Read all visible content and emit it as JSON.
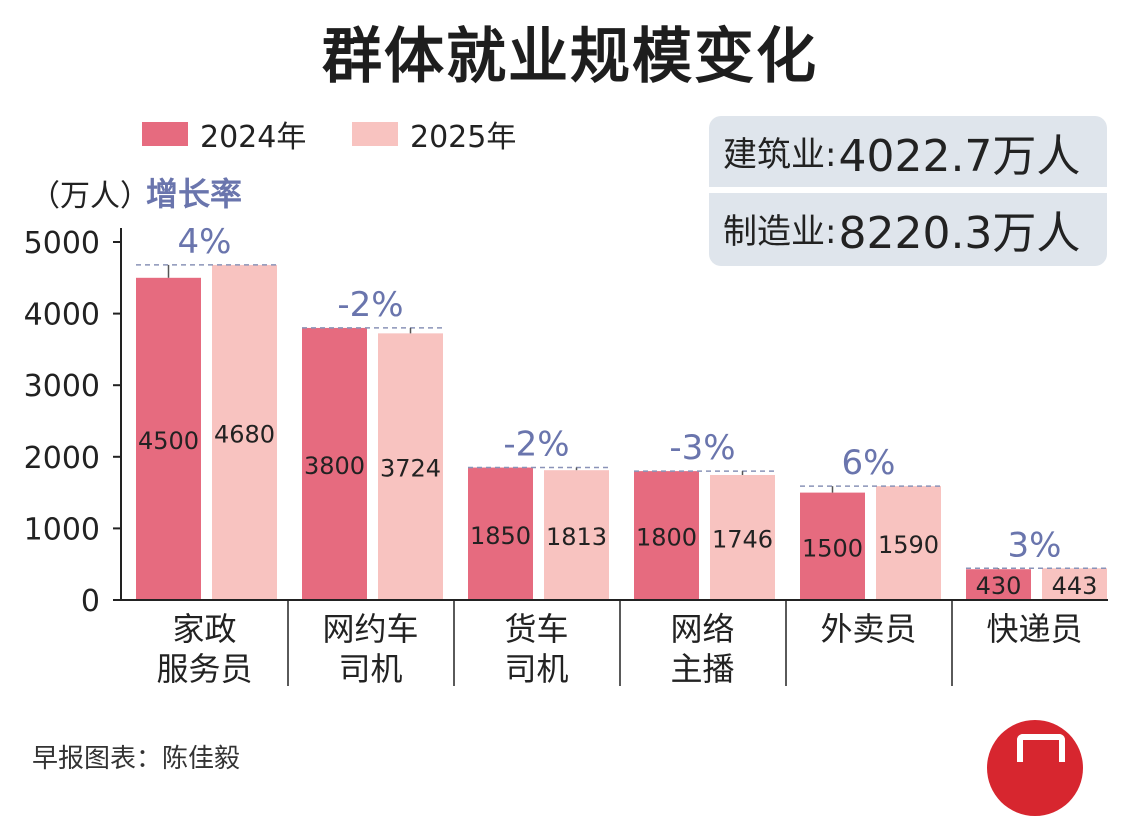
{
  "title": "群体就业规模变化",
  "legend": [
    {
      "label": "2024年",
      "color": "#e66b7f"
    },
    {
      "label": "2025年",
      "color": "#f8c3c0"
    }
  ],
  "info": [
    {
      "name": "建筑业: ",
      "value": "4022.7万人"
    },
    {
      "name": "制造业: ",
      "value": "8220.3万人"
    }
  ],
  "footer": {
    "credit": "早报图表：陈佳毅"
  },
  "chart_data": {
    "type": "bar",
    "ylabel": "（万人）",
    "growth_label": "增长率",
    "growth_color": "#6a75ad",
    "ylim": [
      0,
      5000
    ],
    "yticks": [
      0,
      1000,
      2000,
      3000,
      4000,
      5000
    ],
    "grid": false,
    "categories": [
      [
        "家政",
        "服务员"
      ],
      [
        "网约车",
        "司机"
      ],
      [
        "货车",
        "司机"
      ],
      [
        "网络",
        "主播"
      ],
      [
        "外卖员"
      ],
      [
        "快递员"
      ]
    ],
    "series": [
      {
        "name": "2024年",
        "color": "#e66b7f",
        "values": [
          4500,
          3800,
          1850,
          1800,
          1500,
          430
        ]
      },
      {
        "name": "2025年",
        "color": "#f8c3c0",
        "values": [
          4680,
          3724,
          1813,
          1746,
          1590,
          443
        ]
      }
    ],
    "growth": [
      "4%",
      "-2%",
      "-2%",
      "-3%",
      "6%",
      "3%"
    ]
  }
}
